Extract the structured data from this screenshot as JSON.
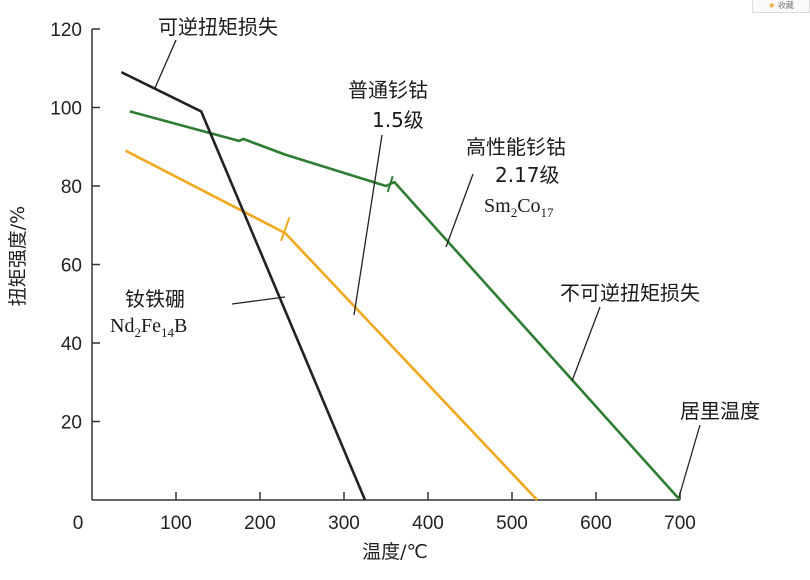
{
  "badge": {
    "icon": "star-icon",
    "label": "收藏"
  },
  "chart_data": {
    "type": "line",
    "xlabel": "温度/℃",
    "ylabel": "扭矩强度/%",
    "xlim": [
      0,
      700
    ],
    "ylim": [
      0,
      120
    ],
    "xticks": [
      0,
      100,
      200,
      300,
      400,
      500,
      600,
      700
    ],
    "yticks": [
      20,
      40,
      60,
      80,
      100,
      120
    ],
    "grid": false,
    "series": [
      {
        "key": "ndfeb",
        "color": "#f0a81e",
        "points": [
          [
            40,
            89
          ],
          [
            230,
            68
          ],
          [
            530,
            0
          ]
        ]
      },
      {
        "key": "smco",
        "color": "#2e7d32",
        "points": [
          [
            45,
            99
          ],
          [
            175,
            91.5
          ],
          [
            180,
            92
          ],
          [
            230,
            88
          ],
          [
            350,
            80
          ],
          [
            360,
            81
          ],
          [
            700,
            0
          ]
        ]
      },
      {
        "key": "reversible",
        "color": "#222222",
        "points": [
          [
            35,
            109
          ],
          [
            130,
            99
          ],
          [
            325,
            0
          ]
        ]
      }
    ],
    "annotations": {
      "reversible_loss": "可逆扭矩损失",
      "common_smco": [
        "普通钐钴",
        "1.5级"
      ],
      "high_smco": [
        "高性能钐钴",
        "2.17级"
      ],
      "smco_formula": {
        "a": "Sm",
        "a_sub": "2",
        "b": "Co",
        "b_sub": "17"
      },
      "ndfeb_name": "钕铁硼",
      "ndfeb_formula": {
        "a": "Nd",
        "a_sub": "2",
        "b": "Fe",
        "b_sub": "14",
        "c": "B"
      },
      "irreversible_loss": "不可逆扭矩损失",
      "curie": "居里温度"
    }
  }
}
